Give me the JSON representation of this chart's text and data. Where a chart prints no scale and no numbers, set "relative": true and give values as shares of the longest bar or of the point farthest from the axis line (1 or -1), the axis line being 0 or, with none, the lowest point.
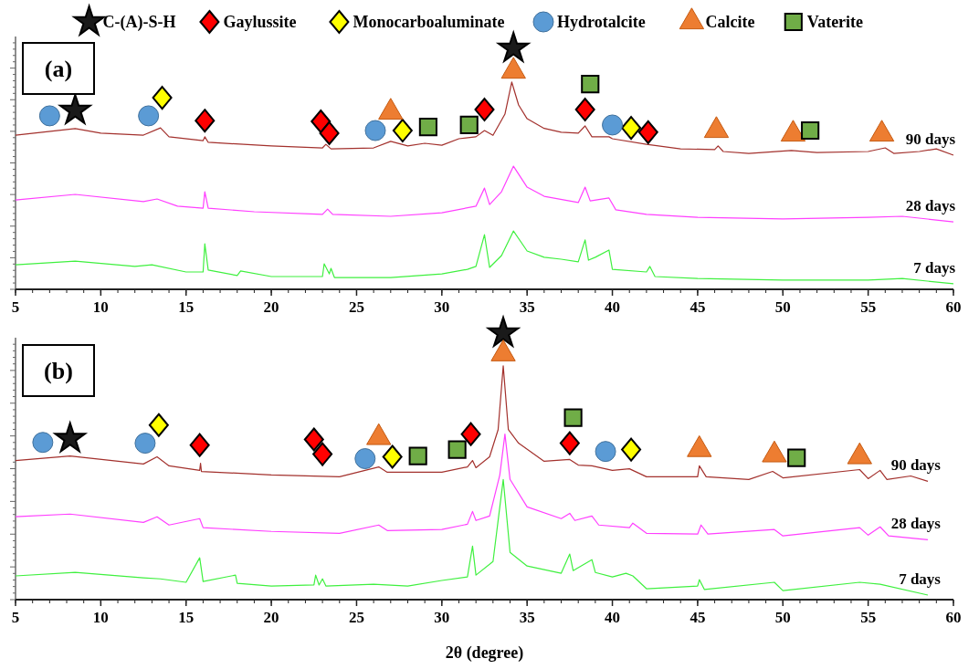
{
  "chart_data": [
    {
      "type": "line",
      "relative": true,
      "legend": "top",
      "xlim": [
        5,
        60
      ],
      "xticks": [
        5,
        10,
        15,
        20,
        25,
        30,
        35,
        40,
        45,
        50,
        55,
        60
      ],
      "annotations": [
        "(a)"
      ],
      "series": [
        {
          "type": "line",
          "name": "90 days",
          "color": "#a3312d",
          "x": [
            5,
            8.5,
            10,
            12.5,
            13.5,
            14,
            16,
            16.1,
            16.3,
            20,
            23,
            23.2,
            23.5,
            26,
            27,
            28,
            29,
            30,
            31,
            32,
            32.5,
            33,
            33.7,
            34.1,
            34.5,
            35,
            36,
            37,
            38,
            38.4,
            38.8,
            39.8,
            40,
            42,
            44,
            46,
            46.2,
            46.5,
            48,
            50.5,
            52,
            55,
            56,
            56.5,
            58,
            59,
            60
          ],
          "values": [
            0.64,
            0.667,
            0.648,
            0.64,
            0.67,
            0.633,
            0.617,
            0.633,
            0.61,
            0.595,
            0.587,
            0.602,
            0.583,
            0.587,
            0.614,
            0.595,
            0.606,
            0.598,
            0.625,
            0.633,
            0.659,
            0.639,
            0.727,
            0.86,
            0.765,
            0.708,
            0.668,
            0.652,
            0.648,
            0.678,
            0.633,
            0.633,
            0.625,
            0.602,
            0.583,
            0.58,
            0.595,
            0.572,
            0.564,
            0.576,
            0.568,
            0.572,
            0.587,
            0.564,
            0.572,
            0.583,
            0.557
          ]
        },
        {
          "type": "line",
          "name": "28 days",
          "color": "#ff3fff",
          "x": [
            5,
            8.5,
            12.5,
            13.3,
            14.5,
            16,
            16.1,
            16.3,
            19,
            23,
            23.3,
            23.6,
            27,
            30,
            32,
            32.5,
            32.8,
            33.5,
            34.2,
            35,
            36,
            38,
            38.4,
            38.7,
            39.8,
            40.2,
            42,
            45,
            50,
            55,
            57,
            60
          ],
          "values": [
            0.371,
            0.394,
            0.364,
            0.375,
            0.345,
            0.337,
            0.405,
            0.337,
            0.322,
            0.311,
            0.333,
            0.311,
            0.303,
            0.318,
            0.345,
            0.42,
            0.352,
            0.405,
            0.511,
            0.424,
            0.386,
            0.36,
            0.424,
            0.367,
            0.379,
            0.33,
            0.311,
            0.299,
            0.292,
            0.299,
            0.303,
            0.28
          ]
        },
        {
          "type": "line",
          "name": "7 days",
          "color": "#3ff03f",
          "x": [
            5,
            8.5,
            12,
            13,
            15,
            16,
            16.1,
            16.3,
            18,
            18.2,
            20,
            23,
            23.1,
            23.4,
            23.5,
            23.7,
            27,
            30,
            31.5,
            32,
            32.5,
            32.8,
            33.5,
            34.2,
            35,
            36,
            37,
            38,
            38.4,
            38.6,
            39,
            39.8,
            40,
            42,
            42.2,
            42.5,
            45,
            50,
            55,
            57,
            60
          ],
          "values": [
            0.102,
            0.117,
            0.095,
            0.102,
            0.072,
            0.072,
            0.189,
            0.08,
            0.057,
            0.076,
            0.053,
            0.053,
            0.106,
            0.064,
            0.087,
            0.049,
            0.049,
            0.064,
            0.083,
            0.095,
            0.227,
            0.091,
            0.14,
            0.242,
            0.159,
            0.133,
            0.125,
            0.114,
            0.205,
            0.121,
            0.133,
            0.163,
            0.083,
            0.072,
            0.095,
            0.053,
            0.045,
            0.038,
            0.038,
            0.045,
            0.023
          ]
        },
        {
          "type": "scatter",
          "name": "C-(A)-S-H",
          "color": "#1a1a1a",
          "marker": "star",
          "x": [
            8.5,
            34.2
          ],
          "values": [
            0.742,
            1.0
          ]
        },
        {
          "type": "scatter",
          "name": "Gaylussite",
          "color": "#ff0000",
          "marker": "diamond",
          "x": [
            16.1,
            22.9,
            23.4,
            32.5,
            38.4,
            42.1
          ],
          "values": [
            0.7,
            0.697,
            0.648,
            0.746,
            0.746,
            0.652
          ]
        },
        {
          "type": "scatter",
          "name": "Monocarboaluminate",
          "color": "#ffff00",
          "marker": "diamond",
          "x": [
            13.6,
            27.7,
            41.1
          ],
          "values": [
            0.795,
            0.659,
            0.67
          ]
        },
        {
          "type": "scatter",
          "name": "Hydrotalcite",
          "color": "#5b9bd5",
          "marker": "circle",
          "x": [
            7,
            12.8,
            26.1,
            40.0
          ],
          "values": [
            0.72,
            0.72,
            0.659,
            0.682
          ]
        },
        {
          "type": "scatter",
          "name": "Calcite",
          "color": "#ed7d31",
          "marker": "triangle",
          "x": [
            27.0,
            34.2,
            46.1,
            50.6,
            55.8
          ],
          "values": [
            0.735,
            0.905,
            0.659,
            0.644,
            0.644
          ]
        },
        {
          "type": "scatter",
          "name": "Vaterite",
          "color": "#70ad47",
          "marker": "square",
          "x": [
            29.2,
            31.6,
            38.7,
            51.6
          ],
          "values": [
            0.674,
            0.682,
            0.852,
            0.659
          ]
        }
      ]
    },
    {
      "type": "line",
      "relative": true,
      "xlim": [
        5,
        60
      ],
      "xticks": [
        5,
        10,
        15,
        20,
        25,
        30,
        35,
        40,
        45,
        50,
        55,
        60
      ],
      "xlabel": "2θ (degree)",
      "annotations": [
        "(b)"
      ],
      "series": [
        {
          "type": "line",
          "name": "90 days",
          "color": "#a3312d",
          "x": [
            5,
            8.2,
            12.5,
            13.3,
            14,
            15.8,
            15.85,
            15.9,
            20,
            24,
            26.3,
            26.8,
            30,
            31.5,
            31.8,
            32,
            32.8,
            33.3,
            33.6,
            33.9,
            34.5,
            36,
            37.5,
            38,
            38.8,
            40,
            41,
            42,
            45,
            45.1,
            45.5,
            48,
            49.4,
            50,
            54.5,
            55,
            55.7,
            56.1,
            57.5,
            58.5
          ],
          "values": [
            0.522,
            0.539,
            0.509,
            0.536,
            0.502,
            0.485,
            0.512,
            0.481,
            0.468,
            0.461,
            0.498,
            0.478,
            0.478,
            0.498,
            0.522,
            0.495,
            0.536,
            0.638,
            0.877,
            0.638,
            0.587,
            0.519,
            0.526,
            0.505,
            0.502,
            0.485,
            0.491,
            0.461,
            0.461,
            0.502,
            0.461,
            0.451,
            0.481,
            0.457,
            0.488,
            0.454,
            0.485,
            0.451,
            0.464,
            0.444
          ]
        },
        {
          "type": "line",
          "name": "28 days",
          "color": "#ff3fff",
          "x": [
            5,
            8.2,
            12.5,
            13.3,
            14,
            15.8,
            16,
            20,
            24,
            26.3,
            26.8,
            30,
            31.5,
            31.8,
            32,
            32.8,
            33.4,
            33.7,
            34,
            35,
            37,
            37.5,
            37.8,
            38.8,
            39.2,
            41,
            41.2,
            42,
            45,
            45.2,
            45.6,
            49.5,
            50,
            54.5,
            55,
            55.7,
            56.2,
            58.5
          ],
          "values": [
            0.311,
            0.321,
            0.29,
            0.311,
            0.28,
            0.304,
            0.27,
            0.256,
            0.249,
            0.28,
            0.259,
            0.263,
            0.283,
            0.331,
            0.297,
            0.314,
            0.468,
            0.621,
            0.451,
            0.348,
            0.304,
            0.324,
            0.297,
            0.314,
            0.28,
            0.27,
            0.287,
            0.249,
            0.246,
            0.28,
            0.246,
            0.263,
            0.239,
            0.27,
            0.242,
            0.273,
            0.239,
            0.225
          ]
        },
        {
          "type": "line",
          "name": "7 days",
          "color": "#3ff03f",
          "x": [
            5,
            8.5,
            12.5,
            13.5,
            15,
            15.8,
            16,
            17.9,
            18,
            20,
            22.5,
            22.6,
            22.8,
            23,
            23.2,
            26,
            28,
            30,
            31.5,
            31.8,
            32,
            33,
            33.6,
            34,
            35,
            37,
            37.5,
            37.7,
            38.8,
            39,
            40,
            40.8,
            41.2,
            42,
            45,
            45.1,
            45.4,
            49.5,
            50,
            54.5,
            55.7,
            58.5
          ],
          "values": [
            0.089,
            0.102,
            0.082,
            0.078,
            0.065,
            0.157,
            0.068,
            0.092,
            0.061,
            0.051,
            0.055,
            0.092,
            0.055,
            0.078,
            0.051,
            0.058,
            0.051,
            0.072,
            0.085,
            0.201,
            0.092,
            0.143,
            0.451,
            0.177,
            0.126,
            0.099,
            0.171,
            0.109,
            0.15,
            0.102,
            0.085,
            0.099,
            0.089,
            0.041,
            0.051,
            0.075,
            0.038,
            0.065,
            0.034,
            0.065,
            0.058,
            0.017
          ]
        },
        {
          "type": "scatter",
          "color": "#1a1a1a",
          "marker": "star",
          "x": [
            8.2,
            33.6
          ],
          "values": [
            0.604,
            1.0
          ]
        },
        {
          "type": "scatter",
          "color": "#ff0000",
          "marker": "diamond",
          "x": [
            15.8,
            22.5,
            23.0,
            31.7,
            37.5
          ],
          "values": [
            0.58,
            0.601,
            0.546,
            0.621,
            0.587
          ]
        },
        {
          "type": "scatter",
          "color": "#ffff00",
          "marker": "diamond",
          "x": [
            13.4,
            27.1,
            41.1
          ],
          "values": [
            0.655,
            0.536,
            0.563
          ]
        },
        {
          "type": "scatter",
          "color": "#5b9bd5",
          "marker": "circle",
          "x": [
            6.6,
            12.6,
            25.5,
            39.6
          ],
          "values": [
            0.59,
            0.587,
            0.529,
            0.556
          ]
        },
        {
          "type": "scatter",
          "color": "#ed7d31",
          "marker": "triangle",
          "x": [
            26.3,
            33.6,
            45.1,
            49.5,
            54.5
          ],
          "values": [
            0.608,
            0.922,
            0.563,
            0.543,
            0.536
          ]
        },
        {
          "type": "scatter",
          "color": "#70ad47",
          "marker": "square",
          "x": [
            28.6,
            30.9,
            37.7,
            50.8
          ],
          "values": [
            0.539,
            0.563,
            0.683,
            0.532
          ]
        }
      ]
    }
  ]
}
